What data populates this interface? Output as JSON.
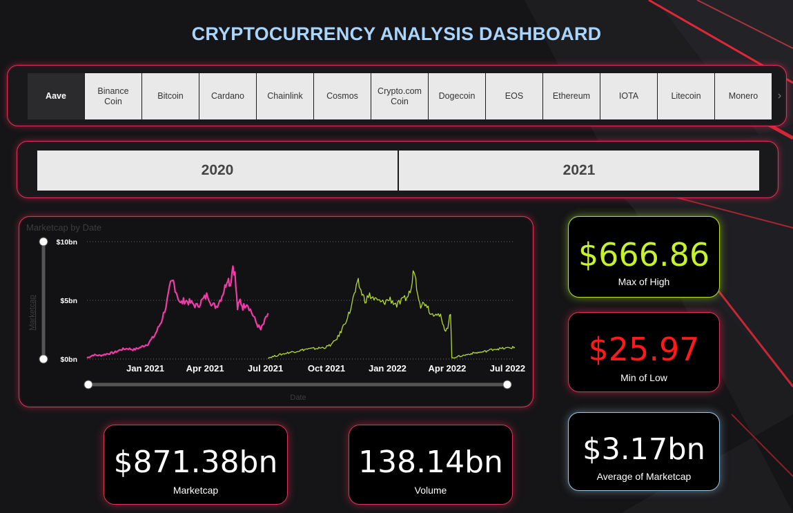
{
  "dashboard": {
    "title": "CRYPTOCURRENCY ANALYSIS DASHBOARD",
    "title_color": "#a9d4fb"
  },
  "coin_slicer": {
    "selected": "Aave",
    "items": [
      {
        "label": "Aave"
      },
      {
        "label": "Binance Coin"
      },
      {
        "label": "Bitcoin"
      },
      {
        "label": "Cardano"
      },
      {
        "label": "Chainlink"
      },
      {
        "label": "Cosmos"
      },
      {
        "label": "Crypto.com Coin"
      },
      {
        "label": "Dogecoin"
      },
      {
        "label": "EOS"
      },
      {
        "label": "Ethereum"
      },
      {
        "label": "IOTA"
      },
      {
        "label": "Litecoin"
      },
      {
        "label": "Monero"
      }
    ],
    "next_icon": "chevron-right-icon",
    "next_glyph": "›"
  },
  "year_slicer": {
    "items": [
      {
        "label": "2020"
      },
      {
        "label": "2021"
      }
    ]
  },
  "kpis": {
    "max_high": {
      "value": "$666.86",
      "label": "Max of High",
      "color": "#c6f22a"
    },
    "min_low": {
      "value": "$25.97",
      "label": "Min of Low",
      "color": "#ff1a1a"
    },
    "avg_marketcap": {
      "value": "$3.17bn",
      "label": "Average of Marketcap",
      "color": "#ffffff"
    },
    "marketcap": {
      "value": "$871.38bn",
      "label": "Marketcap",
      "color": "#ffffff"
    },
    "volume": {
      "value": "138.14bn",
      "label": "Volume",
      "color": "#ffffff"
    }
  },
  "chart_data": {
    "type": "line",
    "title": "Marketcap by Date",
    "xlabel": "Date",
    "ylabel": "Marketcap",
    "y_ticks": [
      "$0bn",
      "$5bn",
      "$10bn"
    ],
    "x_ticks": [
      "Jan 2021",
      "Apr 2021",
      "Jul 2021",
      "Oct 2021",
      "Jan 2022",
      "Apr 2022",
      "Jul 2022"
    ],
    "ylim": [
      0,
      10
    ],
    "x_range": [
      "2020-10-05",
      "2022-07-12"
    ],
    "grid": true,
    "series": [
      {
        "color": "#f03ca8",
        "points": [
          [
            "2020-10-05",
            0.1
          ],
          [
            "2020-10-15",
            0.35
          ],
          [
            "2020-10-25",
            0.3
          ],
          [
            "2020-11-05",
            0.45
          ],
          [
            "2020-11-15",
            0.55
          ],
          [
            "2020-11-25",
            0.8
          ],
          [
            "2020-12-05",
            0.9
          ],
          [
            "2020-12-15",
            0.8
          ],
          [
            "2020-12-25",
            1.0
          ],
          [
            "2021-01-05",
            1.3
          ],
          [
            "2021-01-15",
            2.0
          ],
          [
            "2021-01-25",
            3.2
          ],
          [
            "2021-02-01",
            4.5
          ],
          [
            "2021-02-08",
            6.3
          ],
          [
            "2021-02-12",
            6.6
          ],
          [
            "2021-02-18",
            5.5
          ],
          [
            "2021-02-23",
            4.7
          ],
          [
            "2021-03-01",
            5.0
          ],
          [
            "2021-03-10",
            4.8
          ],
          [
            "2021-03-20",
            4.5
          ],
          [
            "2021-03-28",
            5.0
          ],
          [
            "2021-04-05",
            5.5
          ],
          [
            "2021-04-12",
            4.6
          ],
          [
            "2021-04-18",
            4.5
          ],
          [
            "2021-04-25",
            5.2
          ],
          [
            "2021-05-01",
            6.1
          ],
          [
            "2021-05-05",
            7.0
          ],
          [
            "2021-05-09",
            6.3
          ],
          [
            "2021-05-13",
            8.0
          ],
          [
            "2021-05-16",
            7.2
          ],
          [
            "2021-05-20",
            4.3
          ],
          [
            "2021-05-24",
            5.0
          ],
          [
            "2021-05-28",
            4.4
          ],
          [
            "2021-06-03",
            4.8
          ],
          [
            "2021-06-10",
            4.0
          ],
          [
            "2021-06-18",
            3.0
          ],
          [
            "2021-06-24",
            2.5
          ],
          [
            "2021-06-30",
            3.2
          ],
          [
            "2021-07-05",
            3.9
          ]
        ]
      },
      {
        "color": "#b5d934",
        "points": [
          [
            "2021-07-05",
            0.1
          ],
          [
            "2021-07-15",
            0.25
          ],
          [
            "2021-07-25",
            0.4
          ],
          [
            "2021-08-05",
            0.55
          ],
          [
            "2021-08-20",
            0.7
          ],
          [
            "2021-09-01",
            0.85
          ],
          [
            "2021-09-15",
            0.9
          ],
          [
            "2021-09-30",
            1.0
          ],
          [
            "2021-10-10",
            1.3
          ],
          [
            "2021-10-20",
            2.0
          ],
          [
            "2021-10-28",
            3.0
          ],
          [
            "2021-11-05",
            4.0
          ],
          [
            "2021-11-12",
            5.5
          ],
          [
            "2021-11-18",
            6.5
          ],
          [
            "2021-11-22",
            5.8
          ],
          [
            "2021-11-28",
            5.0
          ],
          [
            "2021-12-05",
            5.4
          ],
          [
            "2021-12-15",
            5.0
          ],
          [
            "2021-12-25",
            4.8
          ],
          [
            "2022-01-05",
            5.1
          ],
          [
            "2022-01-15",
            4.6
          ],
          [
            "2022-01-25",
            5.0
          ],
          [
            "2022-02-01",
            5.4
          ],
          [
            "2022-02-06",
            6.0
          ],
          [
            "2022-02-10",
            7.8
          ],
          [
            "2022-02-14",
            6.2
          ],
          [
            "2022-02-20",
            4.6
          ],
          [
            "2022-02-28",
            4.8
          ],
          [
            "2022-03-08",
            3.8
          ],
          [
            "2022-03-15",
            4.0
          ],
          [
            "2022-03-22",
            3.6
          ],
          [
            "2022-03-28",
            2.4
          ],
          [
            "2022-04-02",
            2.8
          ],
          [
            "2022-04-06",
            4.0
          ],
          [
            "2022-04-08",
            0.1
          ],
          [
            "2022-04-25",
            0.3
          ],
          [
            "2022-05-10",
            0.5
          ],
          [
            "2022-05-25",
            0.6
          ],
          [
            "2022-06-10",
            0.85
          ],
          [
            "2022-06-25",
            0.9
          ],
          [
            "2022-07-12",
            1.0
          ]
        ]
      }
    ]
  }
}
